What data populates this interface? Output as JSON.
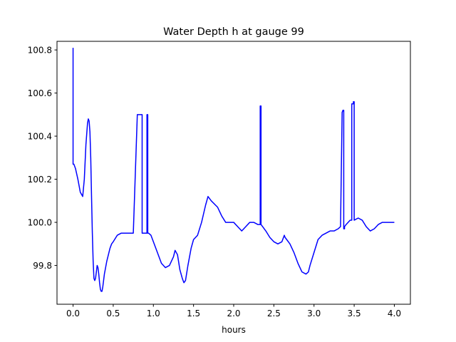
{
  "chart_data": {
    "type": "line",
    "title": "Water Depth h at gauge 99",
    "xlabel": "hours",
    "ylabel": "",
    "xlim": [
      -0.2,
      4.2
    ],
    "ylim": [
      99.62,
      100.84
    ],
    "xticks": [
      0.0,
      0.5,
      1.0,
      1.5,
      2.0,
      2.5,
      3.0,
      3.5,
      4.0
    ],
    "xtick_labels": [
      "0.0",
      "0.5",
      "1.0",
      "1.5",
      "2.0",
      "2.5",
      "3.0",
      "3.5",
      "4.0"
    ],
    "yticks": [
      99.8,
      100.0,
      100.2,
      100.4,
      100.6,
      100.8
    ],
    "ytick_labels": [
      "99.8",
      "100.0",
      "100.2",
      "100.4",
      "100.6",
      "100.8"
    ],
    "grid": false,
    "series": [
      {
        "color": "#0000ff",
        "x": [
          0.0,
          0.0,
          0.0,
          0.01,
          0.03,
          0.06,
          0.09,
          0.12,
          0.14,
          0.16,
          0.18,
          0.19,
          0.2,
          0.21,
          0.22,
          0.23,
          0.24,
          0.25,
          0.26,
          0.27,
          0.28,
          0.29,
          0.3,
          0.31,
          0.32,
          0.33,
          0.34,
          0.35,
          0.36,
          0.37,
          0.38,
          0.39,
          0.4,
          0.42,
          0.44,
          0.46,
          0.48,
          0.5,
          0.55,
          0.6,
          0.65,
          0.7,
          0.75,
          0.8,
          0.81,
          0.81,
          0.86,
          0.86,
          0.92,
          0.92,
          0.93,
          0.93,
          0.94,
          0.97,
          1.0,
          1.05,
          1.1,
          1.15,
          1.2,
          1.25,
          1.27,
          1.3,
          1.33,
          1.36,
          1.38,
          1.4,
          1.43,
          1.47,
          1.5,
          1.55,
          1.6,
          1.65,
          1.68,
          1.72,
          1.8,
          1.85,
          1.9,
          1.95,
          2.0,
          2.05,
          2.1,
          2.15,
          2.2,
          2.25,
          2.3,
          2.33,
          2.33,
          2.34,
          2.34,
          2.36,
          2.4,
          2.45,
          2.5,
          2.55,
          2.6,
          2.62,
          2.63,
          2.64,
          2.66,
          2.7,
          2.75,
          2.8,
          2.85,
          2.9,
          2.93,
          2.95,
          3.0,
          3.05,
          3.1,
          3.15,
          3.2,
          3.25,
          3.3,
          3.33,
          3.35,
          3.36,
          3.37,
          3.37,
          3.38,
          3.38,
          3.4,
          3.45,
          3.47,
          3.47,
          3.49,
          3.49,
          3.5,
          3.5,
          3.55,
          3.6,
          3.65,
          3.7,
          3.75,
          3.8,
          3.85,
          3.9,
          3.95,
          4.0
        ],
        "y": [
          100.81,
          100.27,
          100.27,
          100.27,
          100.25,
          100.2,
          100.14,
          100.12,
          100.2,
          100.36,
          100.46,
          100.48,
          100.47,
          100.42,
          100.3,
          100.12,
          99.95,
          99.82,
          99.74,
          99.73,
          99.74,
          99.77,
          99.8,
          99.79,
          99.76,
          99.72,
          99.69,
          99.68,
          99.68,
          99.7,
          99.73,
          99.76,
          99.78,
          99.82,
          99.85,
          99.88,
          99.9,
          99.91,
          99.94,
          99.95,
          99.95,
          99.95,
          99.95,
          100.5,
          100.5,
          100.5,
          100.5,
          99.95,
          99.95,
          100.5,
          100.5,
          99.95,
          99.95,
          99.94,
          99.91,
          99.86,
          99.81,
          99.79,
          99.8,
          99.84,
          99.87,
          99.85,
          99.78,
          99.74,
          99.72,
          99.73,
          99.8,
          99.88,
          99.92,
          99.94,
          100.0,
          100.08,
          100.12,
          100.1,
          100.07,
          100.03,
          100.0,
          100.0,
          100.0,
          99.98,
          99.96,
          99.98,
          100.0,
          100.0,
          99.99,
          99.99,
          100.54,
          100.54,
          99.99,
          99.98,
          99.96,
          99.93,
          99.91,
          99.9,
          99.91,
          99.93,
          99.94,
          99.93,
          99.92,
          99.9,
          99.86,
          99.81,
          99.77,
          99.76,
          99.77,
          99.8,
          99.86,
          99.92,
          99.94,
          99.95,
          99.96,
          99.96,
          99.97,
          99.98,
          100.51,
          100.52,
          100.52,
          99.97,
          99.97,
          99.98,
          99.99,
          100.01,
          100.01,
          100.55,
          100.55,
          100.56,
          100.56,
          100.01,
          100.02,
          100.01,
          99.98,
          99.96,
          99.97,
          99.99,
          100.0,
          100.0,
          100.0,
          100.0
        ]
      }
    ]
  }
}
